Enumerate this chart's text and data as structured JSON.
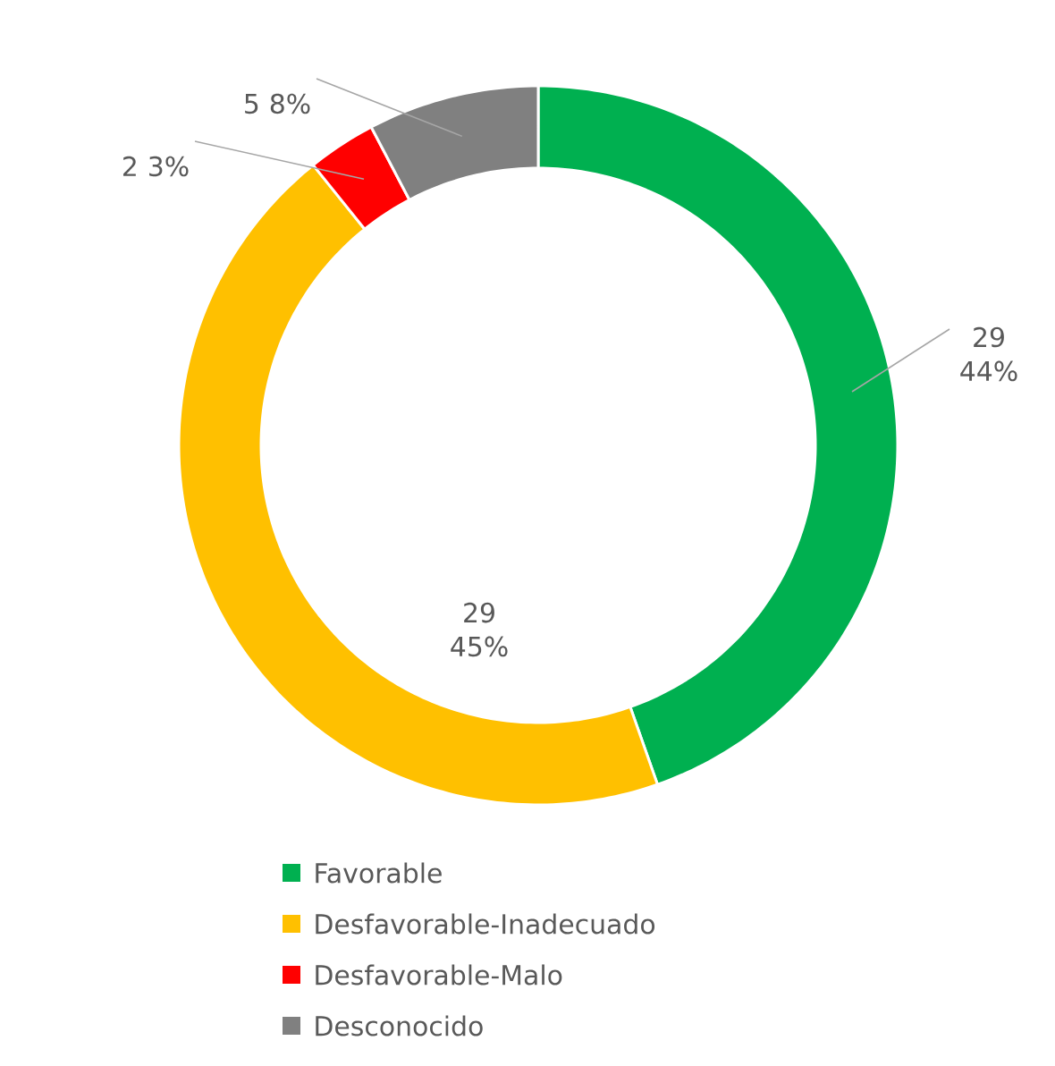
{
  "chart_data": {
    "type": "donut",
    "categories": [
      "Favorable",
      "Desfavorable-Inadecuado",
      "Desfavorable-Malo",
      "Desconocido"
    ],
    "values": [
      29,
      29,
      2,
      5
    ],
    "colors": [
      "#00b050",
      "#ffc000",
      "#ff0000",
      "#808080"
    ],
    "value_labels": [
      "29 44%",
      "29 45%",
      "2 3%",
      "5 8%"
    ],
    "legend": "bottom"
  }
}
